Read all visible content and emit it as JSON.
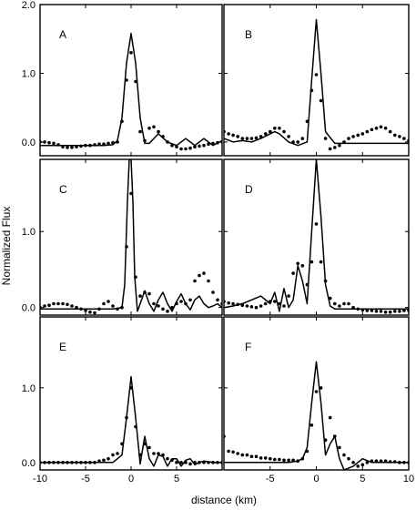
{
  "figure": {
    "ylabel": "Normalized Flux",
    "xlabel": "distance (km)"
  },
  "chart_data": [
    {
      "type": "line",
      "panel": "A",
      "xlim": [
        -10,
        10
      ],
      "ylim": [
        -0.2,
        2.0
      ],
      "yticks": [
        "0.0",
        "1.0",
        "2.0"
      ],
      "xticks": [],
      "series": [
        {
          "kind": "model",
          "style": "solid line",
          "x": [
            -10,
            -8,
            -6,
            -4,
            -3,
            -2,
            -1.5,
            -1,
            -0.5,
            0,
            0.5,
            1,
            1.5,
            2,
            2.5,
            3,
            4,
            5,
            6,
            7,
            8,
            9,
            10
          ],
          "y": [
            -0.05,
            -0.05,
            -0.05,
            -0.05,
            -0.05,
            -0.04,
            0.02,
            0.35,
            1.15,
            1.58,
            1.15,
            0.35,
            -0.02,
            -0.02,
            0.05,
            0.12,
            0.0,
            -0.05,
            0.05,
            -0.05,
            0.05,
            -0.05,
            0.02
          ]
        },
        {
          "kind": "observed",
          "style": "dots",
          "x": [
            -10,
            -9.5,
            -9,
            -8.5,
            -8,
            -7.5,
            -7,
            -6.5,
            -6,
            -5.5,
            -5,
            -4.5,
            -4,
            -3.5,
            -3,
            -2.5,
            -2,
            -1.5,
            -1,
            -0.5,
            0,
            0.5,
            1,
            1.5,
            2,
            2.5,
            3,
            3.5,
            4,
            4.5,
            5,
            5.5,
            6,
            6.5,
            7,
            7.5,
            8,
            8.5,
            9,
            9.5,
            10
          ],
          "y": [
            0.0,
            0.0,
            -0.01,
            -0.02,
            -0.04,
            -0.07,
            -0.08,
            -0.08,
            -0.07,
            -0.06,
            -0.05,
            -0.05,
            -0.04,
            -0.03,
            -0.03,
            -0.02,
            -0.01,
            0.0,
            0.3,
            0.9,
            1.3,
            0.88,
            0.15,
            0.02,
            0.2,
            0.22,
            0.15,
            0.08,
            0.0,
            -0.05,
            -0.07,
            -0.1,
            -0.1,
            -0.09,
            -0.07,
            -0.06,
            -0.05,
            -0.03,
            -0.02,
            -0.01,
            0.0
          ]
        }
      ]
    },
    {
      "type": "line",
      "panel": "B",
      "xlim": [
        -10,
        10
      ],
      "ylim": [
        -0.2,
        2.0
      ],
      "yticks": [],
      "xticks": [],
      "series": [
        {
          "kind": "model",
          "style": "solid line",
          "x": [
            -10,
            -9,
            -8,
            -7,
            -6,
            -5,
            -4.5,
            -4,
            -3,
            -2,
            -1,
            -0.5,
            0,
            0.5,
            1,
            2,
            3,
            4,
            6,
            8,
            10
          ],
          "y": [
            0.05,
            0.0,
            0.02,
            0.0,
            0.05,
            0.12,
            0.15,
            0.12,
            0.0,
            -0.05,
            0.0,
            0.9,
            1.78,
            1.0,
            0.15,
            -0.02,
            -0.02,
            -0.02,
            -0.02,
            -0.02,
            -0.02
          ]
        },
        {
          "kind": "observed",
          "style": "dots",
          "x": [
            -10,
            -9.5,
            -9,
            -8.5,
            -8,
            -7.5,
            -7,
            -6.5,
            -6,
            -5.5,
            -5,
            -4.5,
            -4,
            -3.5,
            -3,
            -2.5,
            -2,
            -1.5,
            -1,
            -0.5,
            0,
            0.5,
            1,
            1.5,
            2,
            2.5,
            3,
            3.5,
            4,
            4.5,
            5,
            5.5,
            6,
            6.5,
            7,
            7.5,
            8,
            8.5,
            9,
            9.5,
            10
          ],
          "y": [
            0.15,
            0.12,
            0.1,
            0.08,
            0.05,
            0.05,
            0.05,
            0.06,
            0.08,
            0.12,
            0.15,
            0.2,
            0.2,
            0.15,
            0.08,
            0.0,
            0.0,
            0.05,
            0.3,
            0.75,
            0.98,
            0.6,
            0.05,
            -0.1,
            -0.08,
            -0.05,
            0.0,
            0.05,
            0.08,
            0.1,
            0.12,
            0.15,
            0.18,
            0.2,
            0.22,
            0.2,
            0.15,
            0.1,
            0.08,
            0.05,
            0.02
          ]
        }
      ]
    },
    {
      "type": "line",
      "panel": "C",
      "xlim": [
        -10,
        10
      ],
      "ylim": [
        -0.1,
        1.95
      ],
      "yticks": [
        "0.0",
        "1.0"
      ],
      "xticks": [],
      "series": [
        {
          "kind": "model",
          "style": "solid line",
          "x": [
            -10,
            -8,
            -6,
            -4,
            -2,
            -1,
            -0.7,
            -0.4,
            -0.2,
            0,
            0.2,
            0.4,
            0.7,
            1,
            1.5,
            2,
            2.5,
            3,
            3.5,
            4,
            4.5,
            5,
            5.5,
            6,
            6.5,
            7,
            7.5,
            8,
            8.5,
            9,
            9.5,
            10
          ],
          "y": [
            -0.02,
            -0.02,
            -0.02,
            -0.02,
            -0.02,
            0.0,
            0.3,
            1.4,
            1.95,
            1.95,
            1.4,
            0.4,
            -0.05,
            0.05,
            0.22,
            0.05,
            -0.05,
            0.1,
            0.2,
            0.05,
            -0.05,
            0.08,
            0.18,
            0.05,
            -0.03,
            0.1,
            0.15,
            0.05,
            0.0,
            0.02,
            0.05,
            0.0
          ]
        },
        {
          "kind": "observed",
          "style": "dots",
          "x": [
            -10,
            -9.5,
            -9,
            -8.5,
            -8,
            -7.5,
            -7,
            -6.5,
            -6,
            -5.5,
            -5,
            -4.5,
            -4,
            -3.5,
            -3,
            -2.5,
            -2,
            -1.5,
            -1,
            -0.5,
            0,
            0.5,
            1,
            1.5,
            2,
            2.5,
            3,
            3.5,
            4,
            4.5,
            5,
            5.5,
            6,
            6.5,
            7,
            7.5,
            8,
            8.5,
            9,
            9.5,
            10
          ],
          "y": [
            0.0,
            0.02,
            0.03,
            0.05,
            0.05,
            0.05,
            0.04,
            0.02,
            0.0,
            -0.02,
            -0.04,
            -0.06,
            -0.07,
            -0.02,
            0.05,
            0.08,
            0.02,
            -0.02,
            0.0,
            0.8,
            1.5,
            0.4,
            0.15,
            0.2,
            0.18,
            0.05,
            0.02,
            -0.02,
            -0.05,
            0.0,
            0.05,
            0.08,
            0.05,
            0.1,
            0.35,
            0.42,
            0.45,
            0.35,
            0.2,
            0.1,
            0.05
          ]
        }
      ]
    },
    {
      "type": "line",
      "panel": "D",
      "xlim": [
        -10,
        10
      ],
      "ylim": [
        -0.1,
        1.95
      ],
      "yticks": [],
      "xticks": [],
      "series": [
        {
          "kind": "model",
          "style": "solid line",
          "x": [
            -10,
            -9,
            -8,
            -7,
            -6,
            -5,
            -4.5,
            -4,
            -3.5,
            -3,
            -2.5,
            -2,
            -1.5,
            -1,
            -0.5,
            0,
            0.5,
            1,
            1.5,
            2,
            3,
            4,
            6,
            8,
            10
          ],
          "y": [
            0.0,
            0.02,
            0.05,
            0.1,
            0.15,
            0.05,
            0.2,
            -0.05,
            0.25,
            0.0,
            0.1,
            0.55,
            0.35,
            0.05,
            1.0,
            1.95,
            1.2,
            0.3,
            0.02,
            -0.02,
            -0.02,
            -0.02,
            -0.02,
            -0.02,
            -0.02
          ]
        },
        {
          "kind": "observed",
          "style": "dots",
          "x": [
            -10,
            -9.5,
            -9,
            -8.5,
            -8,
            -7.5,
            -7,
            -6.5,
            -6,
            -5.5,
            -5,
            -4.5,
            -4,
            -3.5,
            -3,
            -2.5,
            -2,
            -1.5,
            -1,
            -0.5,
            0,
            0.5,
            1,
            1.5,
            2,
            2.5,
            3,
            3.5,
            4,
            4.5,
            5,
            5.5,
            6,
            6.5,
            7,
            7.5,
            8,
            8.5,
            9,
            9.5,
            10
          ],
          "y": [
            0.08,
            0.06,
            0.05,
            0.04,
            0.03,
            0.02,
            0.01,
            0.0,
            0.02,
            0.05,
            0.08,
            0.08,
            0.05,
            0.02,
            0.15,
            0.45,
            0.58,
            0.55,
            0.3,
            0.6,
            1.1,
            0.6,
            0.35,
            0.12,
            0.05,
            0.02,
            0.05,
            0.05,
            0.0,
            -0.02,
            -0.03,
            -0.04,
            -0.04,
            -0.05,
            -0.05,
            -0.06,
            -0.06,
            -0.05,
            -0.05,
            -0.04,
            -0.04
          ]
        }
      ]
    },
    {
      "type": "line",
      "panel": "E",
      "xlim": [
        -10,
        10
      ],
      "ylim": [
        -0.1,
        1.95
      ],
      "yticks": [
        "0.0",
        "1.0"
      ],
      "xticks": [
        "-10",
        "-5",
        "0",
        "5"
      ],
      "series": [
        {
          "kind": "model",
          "style": "solid line",
          "x": [
            -10,
            -8,
            -6,
            -4,
            -2,
            -1.5,
            -1,
            -0.5,
            0,
            0.5,
            1,
            1.5,
            2,
            2.5,
            3,
            3.5,
            4,
            4.5,
            5,
            5.5,
            6,
            6.5,
            7,
            7.5,
            8,
            9,
            10
          ],
          "y": [
            0.0,
            0.0,
            0.0,
            0.0,
            0.0,
            0.05,
            0.1,
            0.6,
            1.15,
            0.6,
            -0.02,
            0.35,
            0.05,
            -0.05,
            0.1,
            0.08,
            -0.05,
            0.05,
            0.05,
            -0.05,
            0.03,
            0.05,
            -0.03,
            0.0,
            0.02,
            0.0,
            0.0
          ]
        },
        {
          "kind": "observed",
          "style": "dots",
          "x": [
            -10,
            -9.5,
            -9,
            -8.5,
            -8,
            -7.5,
            -7,
            -6.5,
            -6,
            -5.5,
            -5,
            -4.5,
            -4,
            -3.5,
            -3,
            -2.5,
            -2,
            -1.5,
            -1,
            -0.5,
            0,
            0.5,
            1,
            1.5,
            2,
            2.5,
            3,
            3.5,
            4,
            4.5,
            5,
            5.5,
            6,
            6.5,
            7,
            7.5,
            8,
            8.5,
            9,
            9.5,
            10
          ],
          "y": [
            0.0,
            0.0,
            0.0,
            0.0,
            0.0,
            0.0,
            0.0,
            0.0,
            0.0,
            0.0,
            0.0,
            0.0,
            0.0,
            0.02,
            0.03,
            0.05,
            0.1,
            0.12,
            0.25,
            0.6,
            1.0,
            0.48,
            0.1,
            0.25,
            0.2,
            0.12,
            0.12,
            0.1,
            0.05,
            0.03,
            0.0,
            0.0,
            0.0,
            -0.02,
            0.0,
            0.0,
            0.0,
            0.0,
            0.0,
            0.0,
            0.0
          ]
        }
      ]
    },
    {
      "type": "line",
      "panel": "F",
      "xlim": [
        -10,
        10
      ],
      "ylim": [
        -0.1,
        1.95
      ],
      "yticks": [],
      "xticks": [
        "-5",
        "0",
        "5",
        "10"
      ],
      "series": [
        {
          "kind": "model",
          "style": "solid line",
          "x": [
            -10,
            -8,
            -6,
            -4,
            -3,
            -2,
            -1.5,
            -1,
            -0.5,
            0,
            0.5,
            1,
            1.5,
            2,
            2.5,
            3,
            4,
            5,
            6,
            8,
            10
          ],
          "y": [
            0.0,
            0.0,
            0.0,
            0.0,
            0.0,
            0.02,
            0.05,
            0.2,
            0.8,
            1.35,
            0.8,
            0.1,
            0.25,
            0.35,
            0.05,
            -0.1,
            -0.05,
            0.05,
            0.0,
            0.0,
            0.0
          ]
        },
        {
          "kind": "observed",
          "style": "dots",
          "x": [
            -10,
            -9.5,
            -9,
            -8.5,
            -8,
            -7.5,
            -7,
            -6.5,
            -6,
            -5.5,
            -5,
            -4.5,
            -4,
            -3.5,
            -3,
            -2.5,
            -2,
            -1.5,
            -1,
            -0.5,
            0,
            0.5,
            1,
            1.5,
            2,
            2.5,
            3,
            3.5,
            4,
            4.5,
            5,
            5.5,
            6,
            6.5,
            7,
            7.5,
            8,
            8.5,
            9,
            9.5,
            10
          ],
          "y": [
            0.35,
            0.15,
            0.14,
            0.12,
            0.1,
            0.1,
            0.08,
            0.08,
            0.06,
            0.06,
            0.05,
            0.04,
            0.04,
            0.03,
            0.03,
            0.03,
            0.02,
            0.05,
            0.15,
            0.5,
            0.95,
            1.0,
            0.3,
            0.6,
            0.35,
            0.2,
            0.1,
            0.05,
            0.0,
            -0.05,
            -0.03,
            0.0,
            0.02,
            0.02,
            0.02,
            0.02,
            0.01,
            0.01,
            0.0,
            0.0,
            0.0
          ]
        }
      ]
    }
  ]
}
